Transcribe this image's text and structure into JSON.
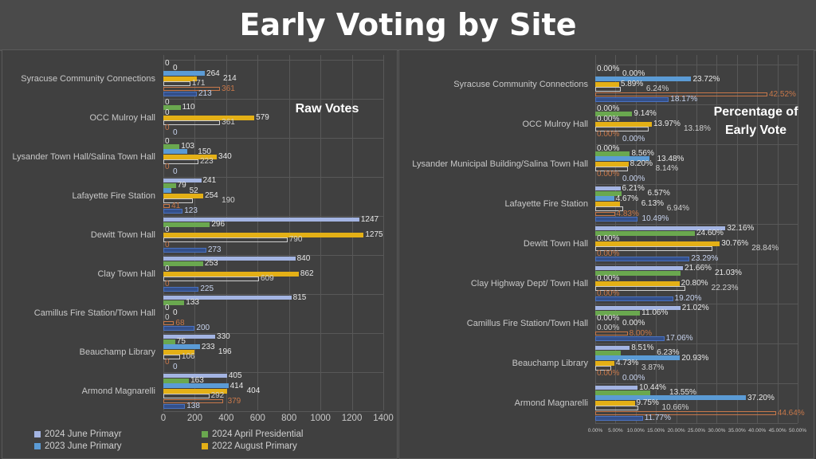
{
  "title": "Early Voting by Site",
  "chart_data": [
    {
      "type": "bar",
      "orientation": "horizontal",
      "title": "Raw Votes",
      "categories": [
        "Syracuse Community Connections",
        "OCC Mulroy Hall",
        "Lysander Town Hall/Salina Town Hall",
        "Lafayette Fire Station",
        "Dewitt Town Hall",
        "Clay Town Hall",
        "Camillus Fire Station/Town Hall",
        "Beauchamp Library",
        "Armond Magnarelli"
      ],
      "xlim": [
        0,
        1400
      ],
      "xticks": [
        "0",
        "200",
        "400",
        "600",
        "800",
        "1000",
        "1200",
        "1400"
      ],
      "grid": true,
      "legend_position": "right",
      "series": [
        {
          "name": "2024 June Primayr",
          "color": "#a3b4e2",
          "style": "filled",
          "values": [
            0,
            0,
            0,
            241,
            1247,
            840,
            815,
            330,
            405
          ]
        },
        {
          "name": "2024 April Presidential",
          "color": "#6aa84f",
          "style": "filled",
          "values": [
            0,
            110,
            103,
            79,
            296,
            253,
            133,
            75,
            163
          ]
        },
        {
          "name": "2023 June Primary",
          "color": "#5b9bd5",
          "style": "filled",
          "values": [
            264,
            0,
            150,
            52,
            0,
            0,
            0,
            233,
            414
          ]
        },
        {
          "name": "2022 August Primary",
          "color": "#e4b016",
          "style": "filled",
          "values": [
            214,
            579,
            340,
            254,
            1275,
            862,
            0,
            196,
            404
          ]
        },
        {
          "color": "#cfcfcf",
          "style": "outline",
          "values": [
            171,
            361,
            223,
            190,
            790,
            609,
            0,
            106,
            292
          ]
        },
        {
          "color": "#c8784a",
          "style": "outline",
          "values": [
            361,
            0,
            0,
            41,
            0,
            0,
            68,
            0,
            379
          ]
        },
        {
          "color": "#4a72c0",
          "style": "dark",
          "values": [
            213,
            0,
            0,
            123,
            273,
            225,
            200,
            0,
            138
          ]
        }
      ]
    },
    {
      "type": "bar",
      "orientation": "horizontal",
      "title": "Percentage of Early Vote",
      "categories": [
        "Syracuse Community Connections",
        "OCC Mulroy Hall",
        "Lysander Municipal Building/Salina Town Hall",
        "Lafayette Fire Station",
        "Dewitt Town Hall",
        "Clay Highway Dept/ Town Hall",
        "Camillus Fire Station/Town Hall",
        "Beauchamp Library",
        "Armond Magnarelli"
      ],
      "xlim": [
        0,
        50
      ],
      "xticks": [
        "0.00%",
        "5.00%",
        "10.00%",
        "15.00%",
        "20.00%",
        "25.00%",
        "30.00%",
        "35.00%",
        "40.00%",
        "45.00%",
        "50.00%"
      ],
      "unit": "%",
      "grid": true,
      "series": [
        {
          "color": "#a3b4e2",
          "style": "filled",
          "values": [
            0,
            0,
            0,
            6.21,
            32.16,
            21.66,
            21.02,
            8.51,
            10.44
          ]
        },
        {
          "color": "#6aa84f",
          "style": "filled",
          "values": [
            0,
            9.14,
            8.56,
            6.57,
            24.6,
            21.03,
            11.06,
            6.23,
            13.55
          ]
        },
        {
          "color": "#5b9bd5",
          "style": "filled",
          "values": [
            23.72,
            0,
            13.48,
            4.67,
            0,
            0,
            0,
            20.93,
            37.2
          ]
        },
        {
          "color": "#e4b016",
          "style": "filled",
          "values": [
            5.89,
            13.97,
            8.2,
            6.13,
            30.76,
            20.8,
            0,
            4.73,
            9.75
          ]
        },
        {
          "color": "#cfcfcf",
          "style": "outline",
          "values": [
            6.24,
            13.18,
            8.14,
            6.94,
            28.84,
            22.23,
            0,
            3.87,
            10.66
          ]
        },
        {
          "color": "#c8784a",
          "style": "outline",
          "values": [
            42.52,
            0,
            0,
            4.83,
            0,
            0,
            8.0,
            0,
            44.64
          ]
        },
        {
          "color": "#4a72c0",
          "style": "dark",
          "values": [
            18.17,
            0,
            0,
            10.49,
            23.29,
            19.2,
            17.06,
            0,
            11.77
          ]
        }
      ]
    }
  ]
}
